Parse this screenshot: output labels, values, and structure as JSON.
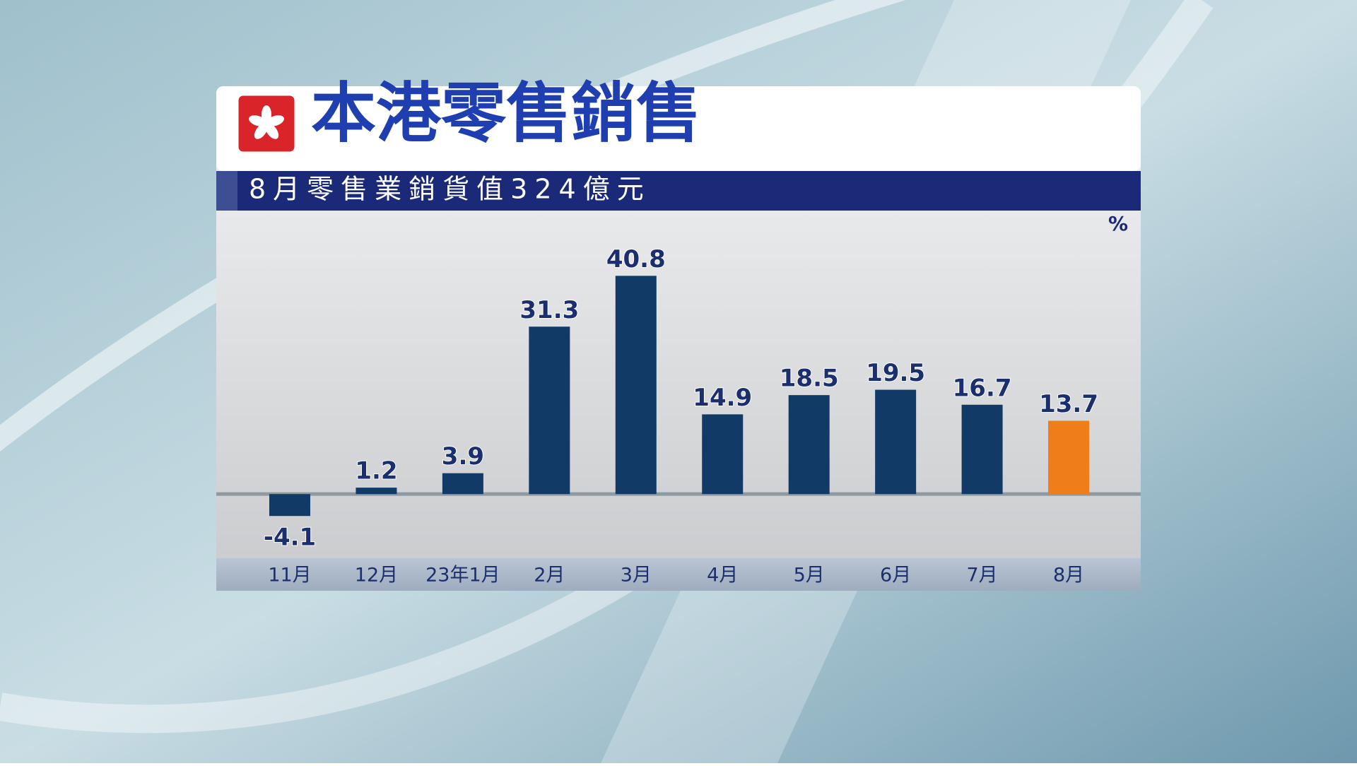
{
  "chart_data": {
    "type": "bar",
    "title": "本港零售銷售",
    "subtitle": "8月零售業銷貨值324億元",
    "unit": "%",
    "categories": [
      "11月",
      "12月",
      "23年1月",
      "2月",
      "3月",
      "4月",
      "5月",
      "6月",
      "7月",
      "8月"
    ],
    "values": [
      -4.1,
      1.2,
      3.9,
      31.3,
      40.8,
      14.9,
      18.5,
      19.5,
      16.7,
      13.7
    ],
    "colors": [
      "#123a66",
      "#123a66",
      "#123a66",
      "#123a66",
      "#123a66",
      "#123a66",
      "#123a66",
      "#123a66",
      "#123a66",
      "#ee7d1a"
    ],
    "ylim": [
      -12,
      53
    ]
  }
}
